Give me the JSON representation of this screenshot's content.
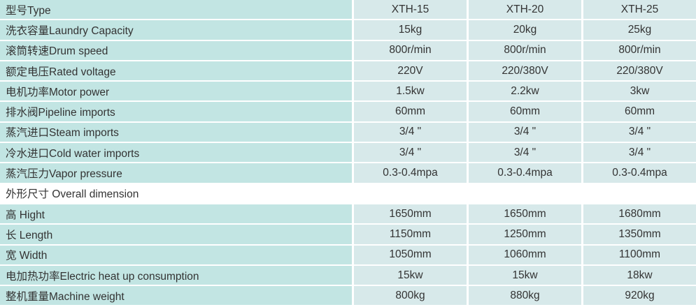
{
  "columns": [
    "型号Type",
    "XTH-15",
    "XTH-20",
    "XTH-25"
  ],
  "rows": [
    {
      "label": "洗衣容量Laundry Capacity",
      "values": [
        "15kg",
        "20kg",
        "25kg"
      ]
    },
    {
      "label": "滚筒转速Drum speed",
      "values": [
        "800r/min",
        "800r/min",
        "800r/min"
      ]
    },
    {
      "label": "额定电压Rated voltage",
      "values": [
        "220V",
        "220/380V",
        "220/380V"
      ]
    },
    {
      "label": "电机功率Motor power",
      "values": [
        "1.5kw",
        "2.2kw",
        "3kw"
      ]
    },
    {
      "label": "排水阀Pipeline imports",
      "values": [
        "60mm",
        "60mm",
        "60mm"
      ]
    },
    {
      "label": "蒸汽进口Steam imports",
      "values": [
        "3/4 \"",
        "3/4 \"",
        "3/4 \""
      ]
    },
    {
      "label": "冷水进口Cold water imports",
      "values": [
        "3/4 \"",
        "3/4 \"",
        "3/4 \""
      ]
    },
    {
      "label": "蒸汽压力Vapor pressure",
      "values": [
        "0.3-0.4mpa",
        "0.3-0.4mpa",
        "0.3-0.4mpa"
      ]
    }
  ],
  "section_label": "外形尺寸 Overall dimension",
  "rows2": [
    {
      "label": "高 Hight",
      "values": [
        "1650mm",
        "1650mm",
        "1680mm"
      ]
    },
    {
      "label": "长 Length",
      "values": [
        "1150mm",
        "1250mm",
        "1350mm"
      ]
    },
    {
      "label": "宽 Width",
      "values": [
        "1050mm",
        "1060mm",
        "1100mm"
      ]
    },
    {
      "label": "电加热功率Electric heat up consumption",
      "values": [
        "15kw",
        "15kw",
        "18kw"
      ]
    },
    {
      "label": "整机重量Machine weight",
      "values": [
        "800kg",
        "880kg",
        "920kg"
      ]
    }
  ],
  "colors": {
    "label_bg": "#c2e5e3",
    "value_bg": "#d7e9ea"
  }
}
